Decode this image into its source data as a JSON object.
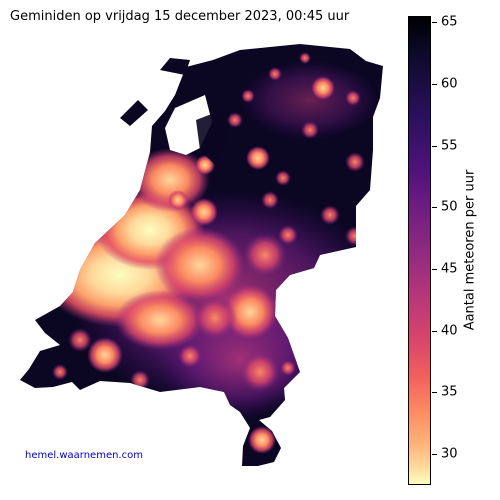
{
  "title": "Geminiden op vrijdag 15 december 2023, 00:45 uur",
  "credit": "hemel.waarnemen.com",
  "colorbar": {
    "label": "Aantal meteoren per uur",
    "min": 27.5,
    "max": 65.5,
    "ticks": [
      "65",
      "60",
      "55",
      "50",
      "45",
      "40",
      "35",
      "30"
    ],
    "colormap": "magma"
  },
  "colors": {
    "darkest": "#000004",
    "purple": "#51127c",
    "magenta": "#b73779",
    "orange": "#fc8961",
    "lightest": "#fcfdbf",
    "credit": "#0000cc"
  }
}
